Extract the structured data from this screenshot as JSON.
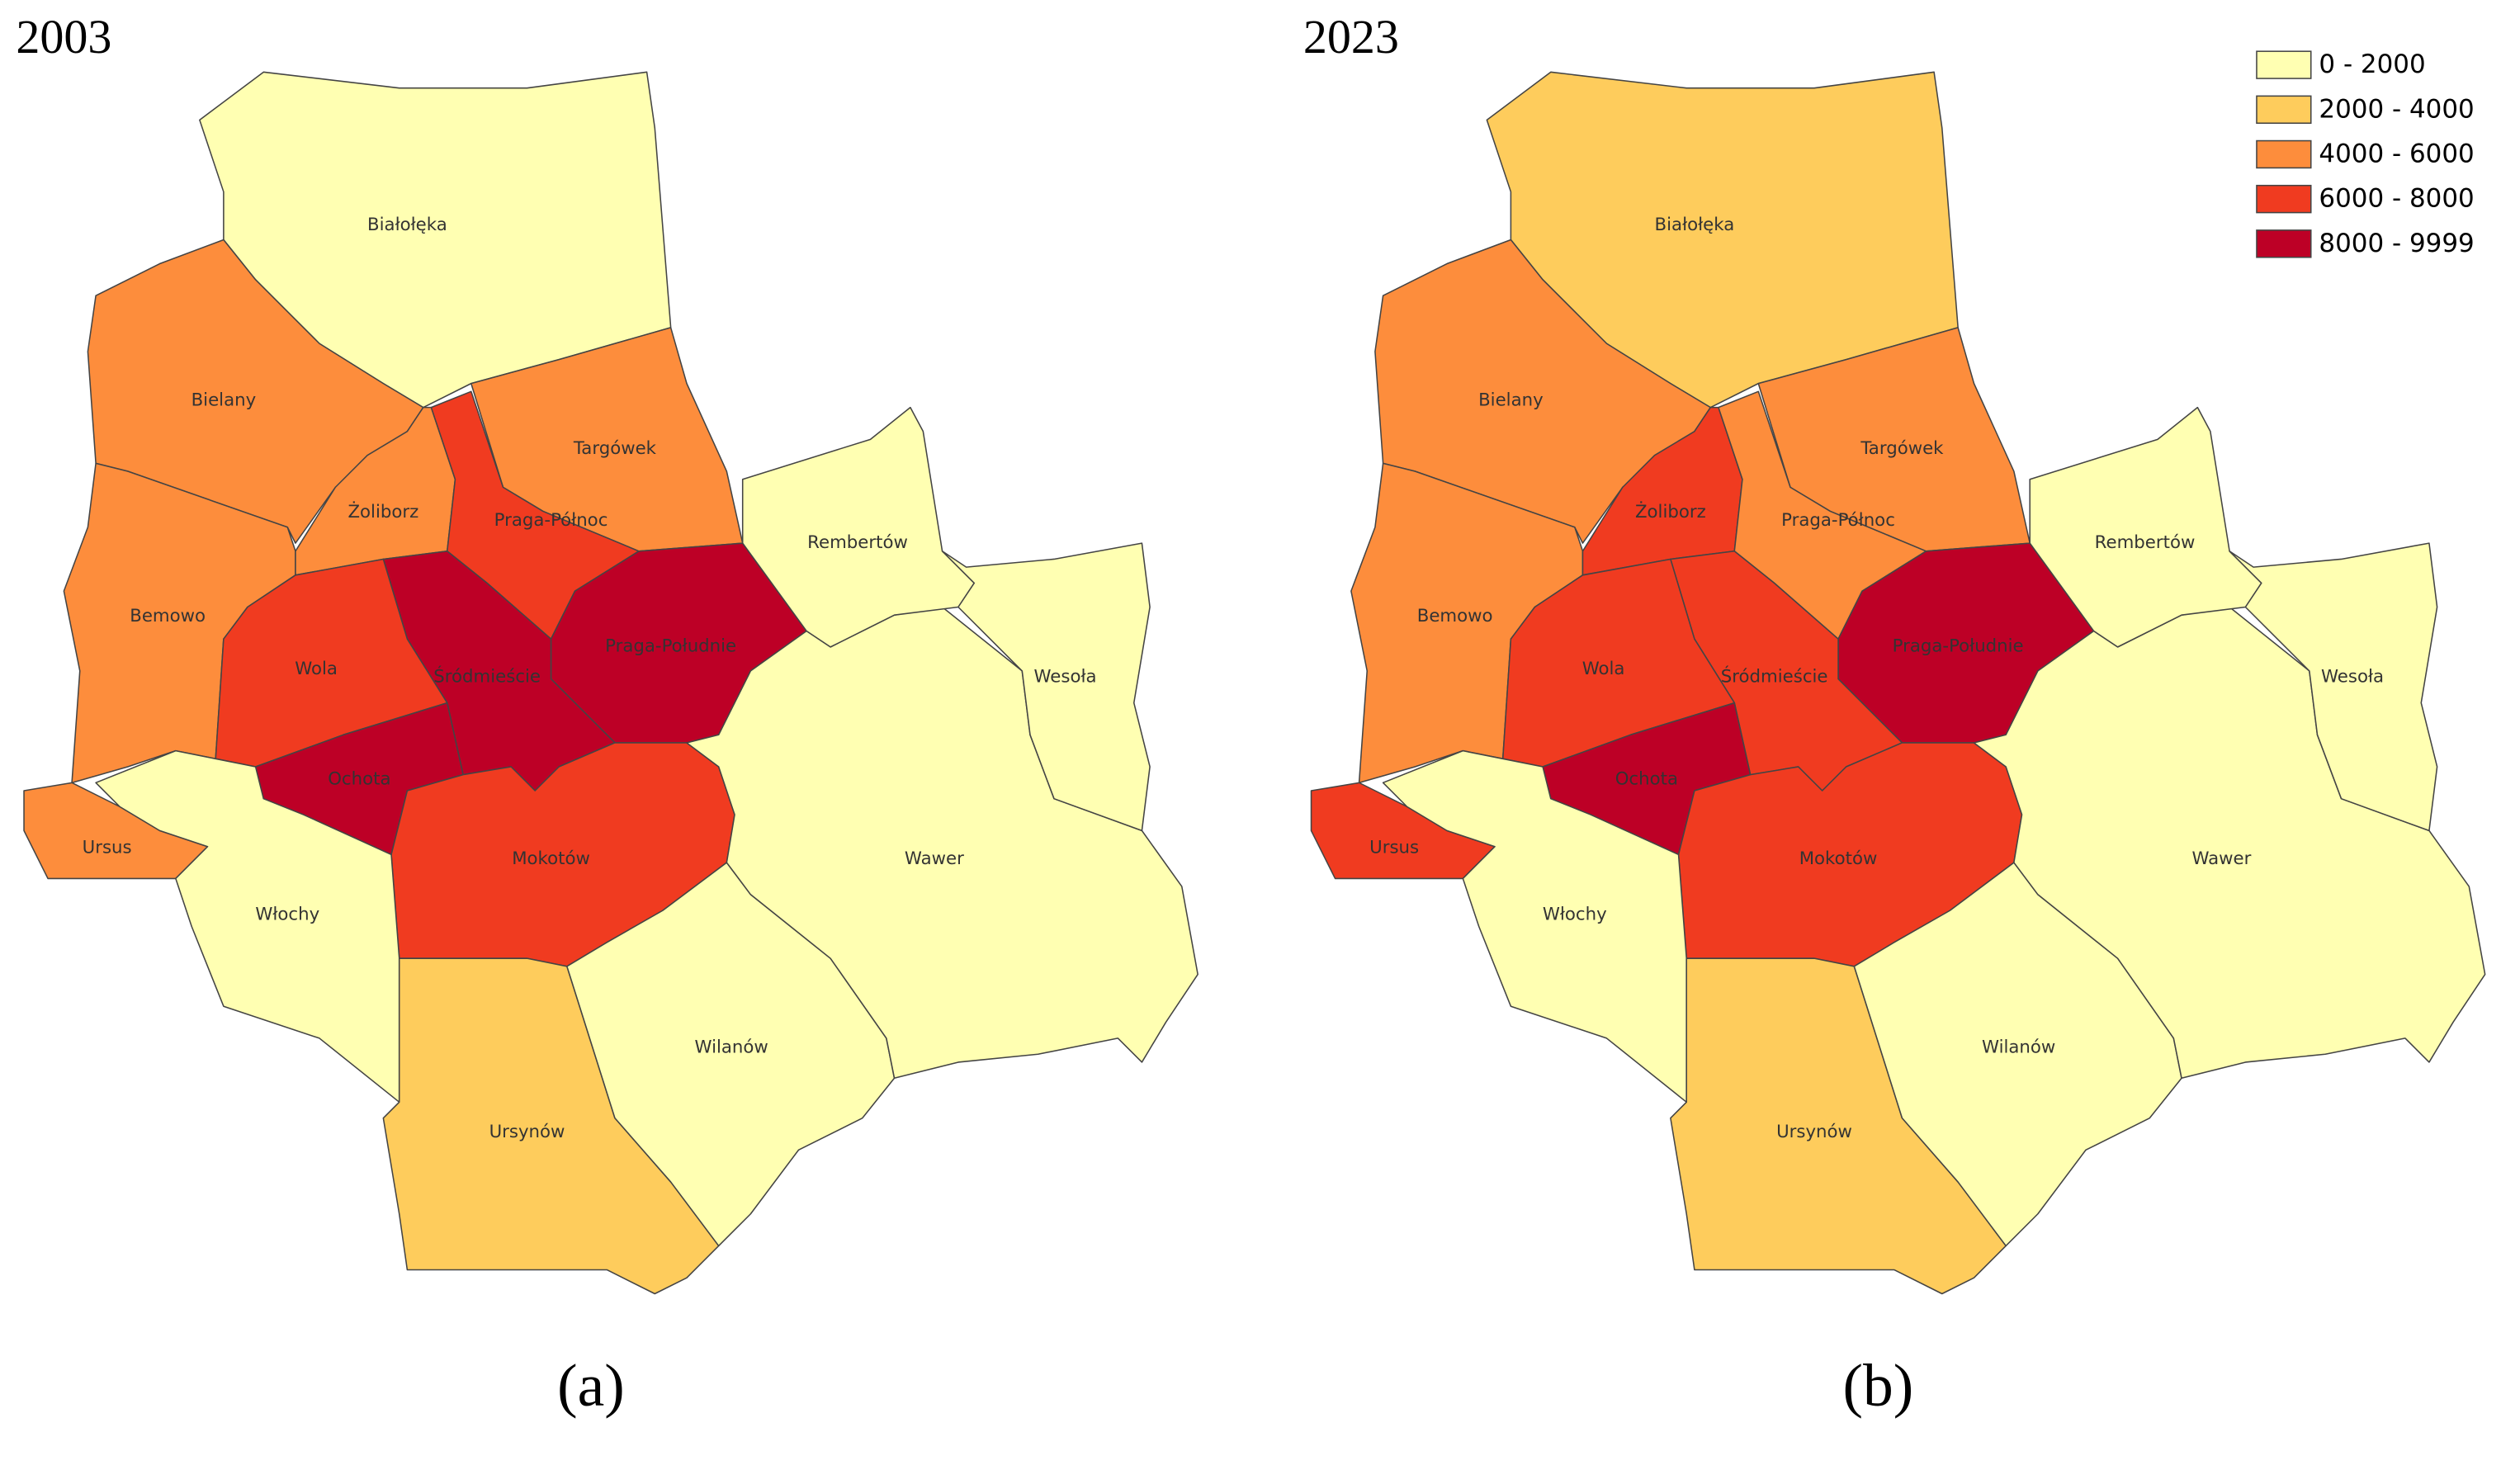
{
  "legend": [
    {
      "label": "0 - 2000",
      "color": "#ffffb2"
    },
    {
      "label": "2000 - 4000",
      "color": "#fecc5c"
    },
    {
      "label": "4000 - 6000",
      "color": "#fd8d3c"
    },
    {
      "label": "6000 - 8000",
      "color": "#f03b20"
    },
    {
      "label": "8000 - 9999",
      "color": "#bd0026"
    }
  ],
  "districts": [
    "Białołęka",
    "Bielany",
    "Bemowo",
    "Żoliborz",
    "Targówek",
    "Praga-Północ",
    "Praga-Południe",
    "Śródmieście",
    "Wola",
    "Ochota",
    "Mokotów",
    "Ursus",
    "Włochy",
    "Ursynów",
    "Wilanów",
    "Wawer",
    "Rembertów",
    "Wesoła"
  ],
  "maps": [
    {
      "title": "2003",
      "caption": "(a)",
      "classes": [
        0,
        2,
        2,
        2,
        2,
        3,
        4,
        4,
        3,
        4,
        3,
        2,
        0,
        1,
        0,
        0,
        0,
        0
      ]
    },
    {
      "title": "2023",
      "caption": "(b)",
      "classes": [
        1,
        2,
        2,
        3,
        2,
        2,
        4,
        3,
        3,
        4,
        3,
        3,
        0,
        1,
        0,
        0,
        0,
        0
      ]
    }
  ]
}
